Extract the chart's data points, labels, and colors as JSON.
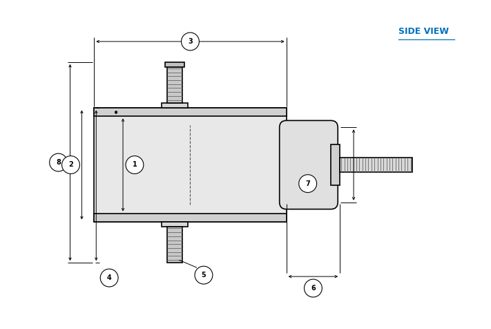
{
  "bg_color": "#ffffff",
  "line_color": "#000000",
  "dim_color": "#000000",
  "label_color": "#1a1a1a",
  "side_view_color": "#0070c0",
  "side_view_text": "SIDE VIEW",
  "figsize": [
    7.11,
    4.76
  ],
  "dpi": 100,
  "labels": [
    "1",
    "2",
    "3",
    "4",
    "5",
    "6",
    "7",
    "8"
  ]
}
